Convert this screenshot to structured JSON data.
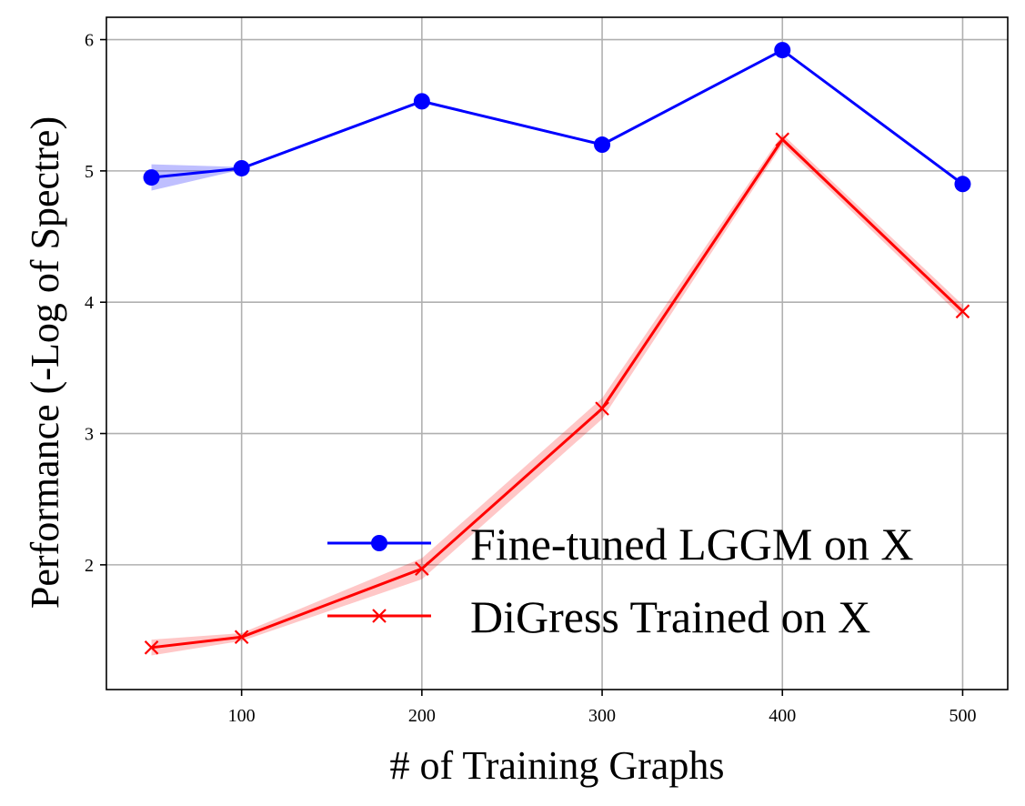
{
  "chart_data": {
    "type": "line",
    "xlabel": "# of Training Graphs",
    "ylabel": "Performance (-Log of Spectre)",
    "xlim": [
      25,
      525
    ],
    "ylim": [
      1.05,
      6.17
    ],
    "xticks": [
      100,
      200,
      300,
      400,
      500
    ],
    "yticks": [
      2,
      3,
      4,
      5,
      6
    ],
    "grid": true,
    "legend_position": "lower-right",
    "x": [
      50,
      100,
      200,
      300,
      400,
      500
    ],
    "series": [
      {
        "name": "Fine-tuned LGGM on X",
        "color": "#0000ff",
        "band_color": "rgba(0,0,255,0.25)",
        "marker": "circle",
        "values": [
          4.95,
          5.02,
          5.53,
          5.2,
          5.92,
          4.9
        ],
        "lower": [
          4.85,
          5.01,
          5.52,
          5.19,
          5.91,
          4.89
        ],
        "upper": [
          5.05,
          5.03,
          5.54,
          5.21,
          5.93,
          4.91
        ]
      },
      {
        "name": "DiGress Trained on X",
        "color": "#ff0000",
        "band_color": "rgba(255,0,0,0.22)",
        "marker": "x",
        "values": [
          1.37,
          1.45,
          1.97,
          3.19,
          5.24,
          3.93
        ],
        "lower": [
          1.31,
          1.42,
          1.89,
          3.11,
          5.2,
          3.88
        ],
        "upper": [
          1.43,
          1.48,
          2.05,
          3.27,
          5.28,
          3.98
        ]
      }
    ]
  }
}
